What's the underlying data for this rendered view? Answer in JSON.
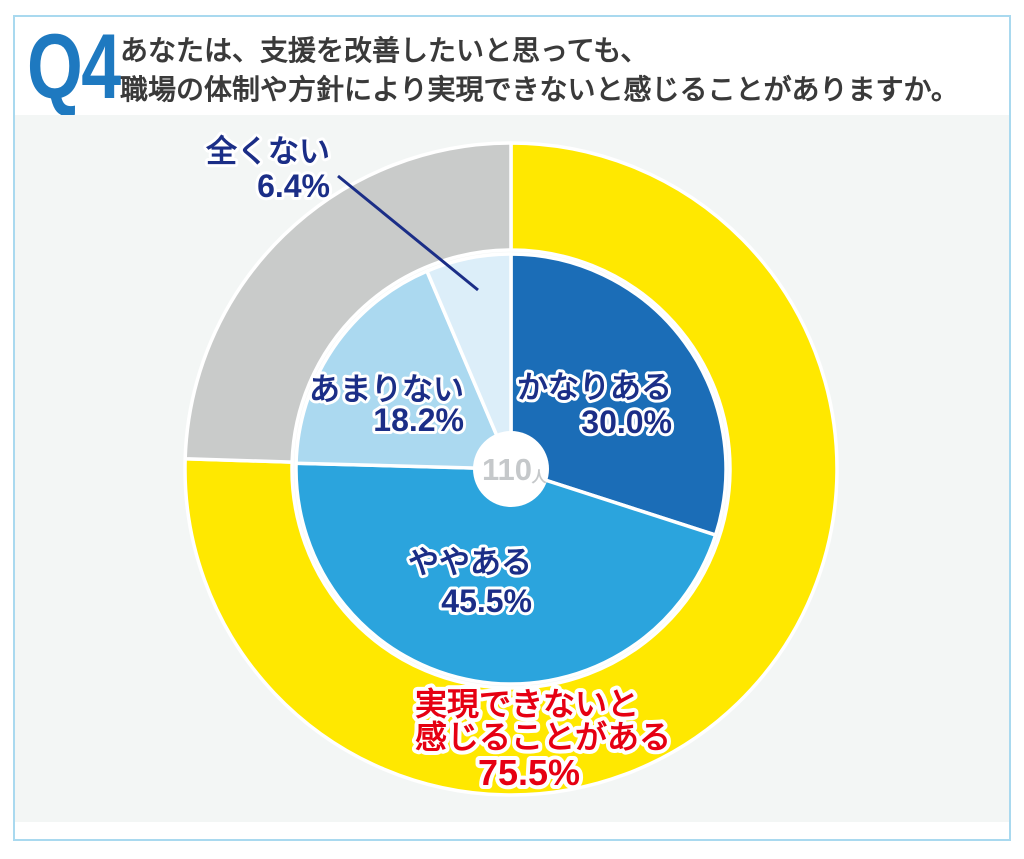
{
  "header": {
    "q_label": "Q4",
    "question_line1": "あなたは、支援を改善したいと思っても、",
    "question_line2": "職場の体制や方針により実現できないと感じることがありますか。"
  },
  "chart_data": {
    "type": "pie",
    "subtype": "donut-ring-with-inner-pie",
    "title": "",
    "total_label": "110",
    "total_unit": "人",
    "direction": "clockwise",
    "start_angle": "12-oclock",
    "categories": [
      "かなりある",
      "ややある",
      "あまりない",
      "全くない"
    ],
    "values": [
      30.0,
      45.5,
      18.2,
      6.4
    ],
    "slices": [
      {
        "label": "かなりある",
        "pct_label": "30.0%",
        "value": 30.0,
        "color": "#1b6db7"
      },
      {
        "label": "ややある",
        "pct_label": "45.5%",
        "value": 45.5,
        "color": "#2ba4dd"
      },
      {
        "label": "あまりない",
        "pct_label": "18.2%",
        "value": 18.2,
        "color": "#abd9f0"
      },
      {
        "label": "全くない",
        "pct_label": "6.4%",
        "value": 6.4,
        "color": "#dceef9"
      }
    ],
    "outer_ring": [
      {
        "label_line1": "実現できないと",
        "label_line2": "感じることがある",
        "pct_label": "75.5%",
        "value": 75.5,
        "color": "#ffe800",
        "text_color": "#e60012"
      },
      {
        "label_line1": "",
        "label_line2": "",
        "pct_label": "",
        "value": 24.5,
        "color": "#c9cbca",
        "text_color": ""
      }
    ]
  },
  "colors": {
    "card_border": "#a9d9ef",
    "panel_bg": "#f3f6f5",
    "q_blue": "#1e79c0",
    "question_text": "#3a3a3a",
    "label_navy": "#1b2e87",
    "leader_line": "#1b2e87",
    "center_text": "#c5c8ca",
    "slice_stroke": "#ffffff"
  }
}
